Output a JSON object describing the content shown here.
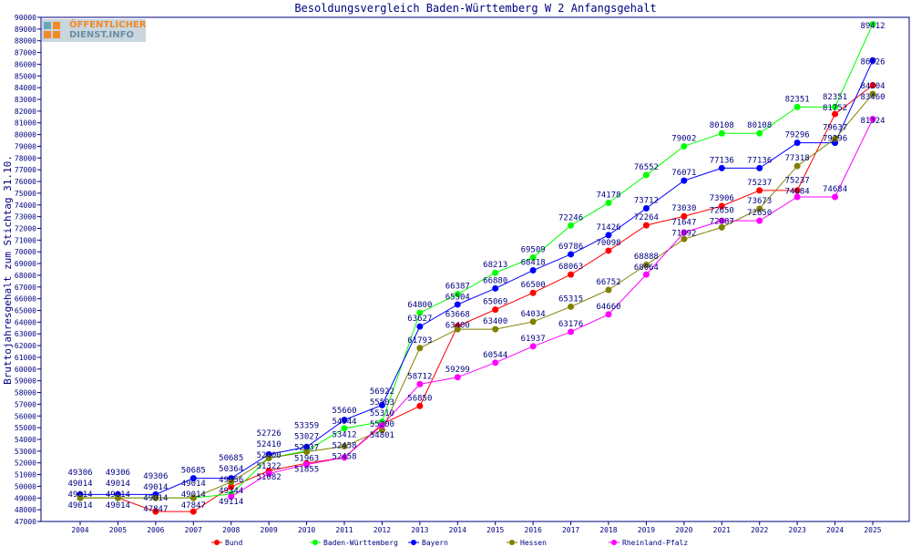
{
  "logo": {
    "line1": "ÖFFENTLICHER",
    "line2": "DIENST.INFO"
  },
  "chart_data": {
    "type": "line",
    "title": "Besoldungsvergleich Baden-Württemberg W 2 Anfangsgehalt",
    "xlabel": "",
    "ylabel": "Bruttojahresgehalt zum Stichtag 31.10.",
    "ylim": [
      47000,
      90000
    ],
    "ytick_step": 1000,
    "grid": false,
    "legend_placement": "bottom",
    "categories": [
      "2004",
      "2005",
      "2006",
      "2007",
      "2008",
      "2009",
      "2010",
      "2011",
      "2012",
      "2013",
      "2014",
      "2015",
      "2016",
      "2017",
      "2018",
      "2019",
      "2020",
      "2021",
      "2022",
      "2023",
      "2024",
      "2025"
    ],
    "series": [
      {
        "name": "Bund",
        "color": "#ff0000",
        "values": [
          49014,
          49014,
          47847,
          47847,
          49956,
          51322,
          51963,
          52458,
          55310,
          56850,
          63668,
          65069,
          66500,
          68063,
          70098,
          72264,
          73030,
          73906,
          75237,
          75237,
          81752,
          84204
        ]
      },
      {
        "name": "Baden-Württemberg",
        "color": "#00ff00",
        "values": [
          49014,
          49014,
          49014,
          49014,
          49344,
          52410,
          53027,
          54944,
          55503,
          64800,
          66387,
          68213,
          69509,
          72246,
          74178,
          76552,
          79002,
          80108,
          80108,
          82351,
          82351,
          89412
        ]
      },
      {
        "name": "Bayern",
        "color": "#0000ff",
        "values": [
          49306,
          49306,
          49306,
          50685,
          50685,
          52726,
          53359,
          55660,
          56922,
          63627,
          65504,
          66880,
          68418,
          69786,
          71426,
          73712,
          76071,
          77136,
          77136,
          79296,
          79296,
          86326
        ]
      },
      {
        "name": "Hessen",
        "color": "#808000",
        "values": [
          49014,
          49014,
          49014,
          49014,
          50364,
          52400,
          52937,
          53412,
          54801,
          61793,
          63400,
          63400,
          64034,
          65315,
          66752,
          68888,
          71092,
          72087,
          73673,
          77318,
          79637,
          83460
        ]
      },
      {
        "name": "Rheinland-Pfalz",
        "color": "#ff00ff",
        "values": [
          null,
          null,
          null,
          null,
          49114,
          51082,
          51855,
          52458,
          55200,
          58712,
          59299,
          60544,
          61937,
          63176,
          64660,
          68064,
          71647,
          72650,
          72650,
          74684,
          74684,
          81324
        ]
      }
    ]
  }
}
